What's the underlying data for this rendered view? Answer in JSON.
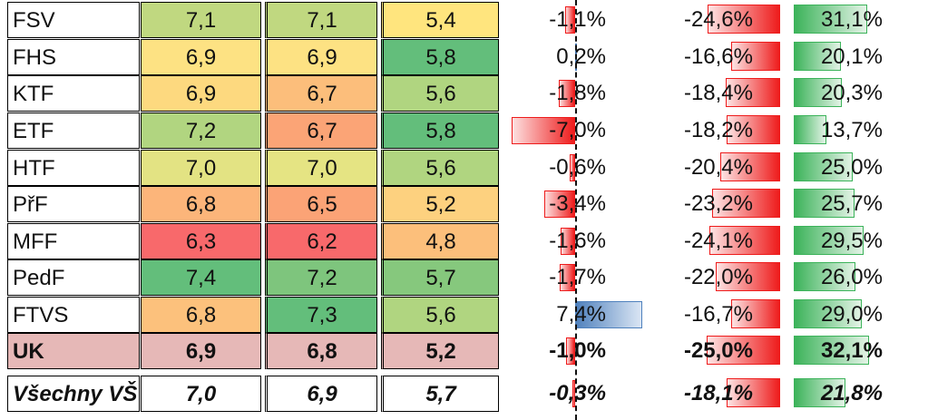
{
  "colors": {
    "uk_row": "#e6b8b7",
    "neg_bar": "#ee1c1c",
    "pos_bar_blue": "#4f81bd",
    "pos_bar_green": "#3cb35a"
  },
  "rows": [
    {
      "name": "FSV",
      "v1": "7,1",
      "v2": "7,1",
      "v3": "5,4",
      "c1": "#c0d880",
      "c2": "#c0d880",
      "c3": "#ffe57e",
      "d1": "-1,1%",
      "d1v": -1.1,
      "d2": "-24,6%",
      "d2v": -24.6,
      "d3": "31,1%",
      "d3v": 31.1,
      "type": "normal"
    },
    {
      "name": "FHS",
      "v1": "6,9",
      "v2": "6,9",
      "v3": "5,8",
      "c1": "#fde283",
      "c2": "#fde283",
      "c3": "#63be7b",
      "d1": "0,2%",
      "d1v": 0.2,
      "d2": "-16,6%",
      "d2v": -16.6,
      "d3": "20,1%",
      "d3v": 20.1,
      "type": "normal"
    },
    {
      "name": "KTF",
      "v1": "6,9",
      "v2": "6,7",
      "v3": "5,6",
      "c1": "#fdd97f",
      "c2": "#fcbe7b",
      "c3": "#b0d580",
      "type": "normal",
      "d1": "-1,8%",
      "d1v": -1.8,
      "d2": "-18,4%",
      "d2v": -18.4,
      "d3": "20,3%",
      "d3v": 20.3
    },
    {
      "name": "ETF",
      "v1": "7,2",
      "v2": "6,7",
      "v3": "5,8",
      "c1": "#b1d580",
      "c2": "#fba476",
      "c3": "#63be7b",
      "d1": "-7,0%",
      "d1v": -7.0,
      "d2": "-18,2%",
      "d2v": -18.2,
      "d3": "13,7%",
      "d3v": 13.7,
      "type": "normal"
    },
    {
      "name": "HTF",
      "v1": "7,0",
      "v2": "7,0",
      "v3": "5,6",
      "c1": "#e3e383",
      "c2": "#e5e483",
      "c3": "#b0d580",
      "d1": "-0,6%",
      "d1v": -0.6,
      "d2": "-20,4%",
      "d2v": -20.4,
      "d3": "25,0%",
      "d3v": 25.0,
      "type": "normal"
    },
    {
      "name": "PřF",
      "v1": "6,8",
      "v2": "6,5",
      "v3": "5,2",
      "c1": "#fcb57a",
      "c2": "#fba376",
      "c3": "#fdd17f",
      "d1": "-3,4%",
      "d1v": -3.4,
      "d2": "-23,2%",
      "d2v": -23.2,
      "d3": "25,7%",
      "d3v": 25.7,
      "type": "normal"
    },
    {
      "name": "MFF",
      "v1": "6,3",
      "v2": "6,2",
      "v3": "4,8",
      "c1": "#f8696b",
      "c2": "#f8696b",
      "c3": "#fcbf7b",
      "d1": "-1,6%",
      "d1v": -1.6,
      "d2": "-24,1%",
      "d2v": -24.1,
      "d3": "29,5%",
      "d3v": 29.5,
      "type": "normal"
    },
    {
      "name": "PedF",
      "v1": "7,4",
      "v2": "7,2",
      "v3": "5,7",
      "c1": "#63be7b",
      "c2": "#7ec57d",
      "c3": "#86c87d",
      "d1": "-1,7%",
      "d1v": -1.7,
      "d2": "-22,0%",
      "d2v": -22.0,
      "d3": "26,0%",
      "d3v": 26.0,
      "type": "normal"
    },
    {
      "name": "FTVS",
      "v1": "6,8",
      "v2": "7,3",
      "v3": "5,6",
      "c1": "#fcc17c",
      "c2": "#63be7b",
      "c3": "#b0d580",
      "d1": "7,4%",
      "d1v": 7.4,
      "d2": "-16,7%",
      "d2v": -16.7,
      "d3": "29,0%",
      "d3v": 29.0,
      "type": "normal"
    },
    {
      "name": "UK",
      "v1": "6,9",
      "v2": "6,8",
      "v3": "5,2",
      "c1": "#e6b8b7",
      "c2": "#e6b8b7",
      "c3": "#e6b8b7",
      "d1": "-1,0%",
      "d1v": -1.0,
      "d2": "-25,0%",
      "d2v": -25.0,
      "d3": "32,1%",
      "d3v": 32.1,
      "type": "uk"
    },
    {
      "name": "Všechny VŠ",
      "v1": "7,0",
      "v2": "6,9",
      "v3": "5,7",
      "c1": "#ffffff",
      "c2": "#ffffff",
      "c3": "#ffffff",
      "d1": "-0,3%",
      "d1v": -0.3,
      "d2": "-18,1%",
      "d2v": -18.1,
      "d3": "21,8%",
      "d3v": 21.8,
      "type": "all"
    }
  ]
}
